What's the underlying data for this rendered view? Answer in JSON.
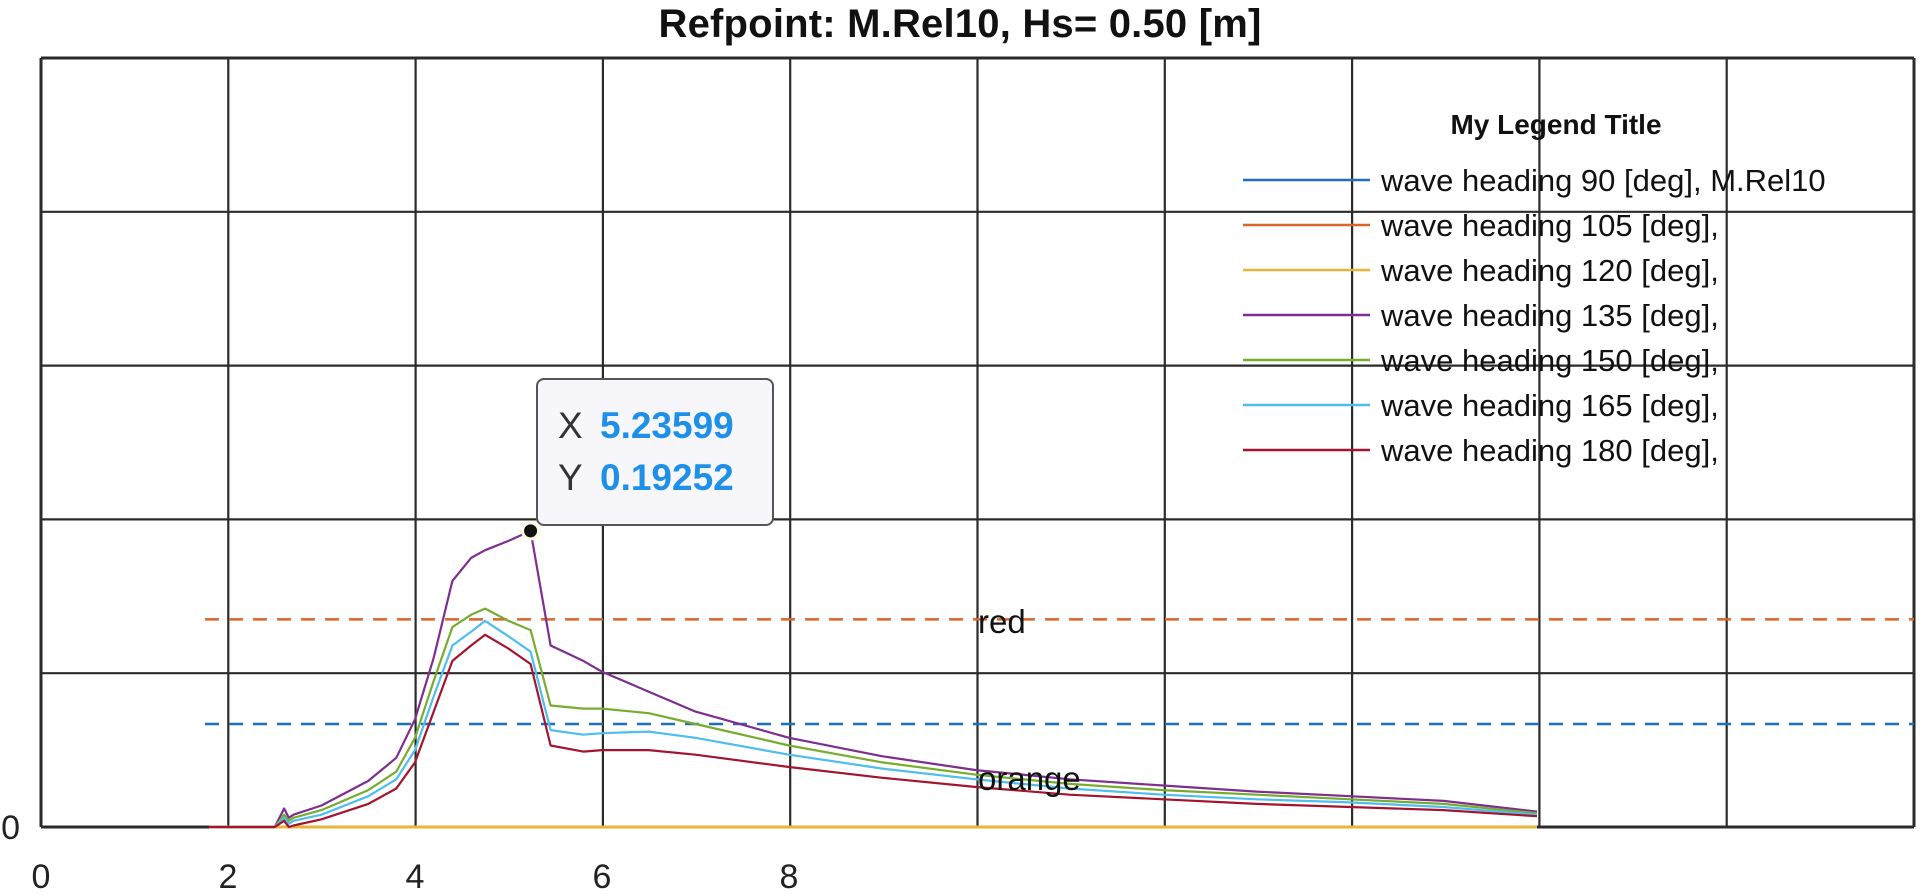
{
  "chart_data": {
    "type": "line",
    "title": "Refpoint: M.Rel10, Hs= 0.50 [m]",
    "xlabel": "",
    "ylabel": "",
    "xlim": [
      0,
      10
    ],
    "ylim": [
      0,
      0.5
    ],
    "grid": true,
    "x_tick_labels": [
      "0",
      "2",
      "4",
      "6",
      "8"
    ],
    "y_tick_labels": [
      "0"
    ],
    "legend": {
      "title": "My Legend Title",
      "position": "upper right"
    },
    "x": [
      1.8,
      2.0,
      2.5,
      2.6,
      2.65,
      2.7,
      3.0,
      3.5,
      3.8,
      4.0,
      4.2,
      4.4,
      4.6,
      4.75,
      5.0,
      5.236,
      5.45,
      5.8,
      6.0,
      6.5,
      7.0,
      8.0,
      9.0,
      10.0,
      11.0,
      12.0,
      13.0,
      14.0,
      15.0,
      16.0
    ],
    "series": [
      {
        "name": "wave heading 90 [deg], M.Rel10",
        "color": "#1f6fb8",
        "values": [
          0,
          0,
          0,
          0,
          0,
          0,
          0,
          0,
          0,
          0,
          0,
          0,
          0,
          0,
          0,
          0,
          0,
          0,
          0,
          0,
          0,
          0,
          0,
          0,
          0,
          0,
          0,
          0,
          0,
          0
        ]
      },
      {
        "name": "wave heading 105 [deg],",
        "color": "#d9652b",
        "values": [
          0,
          0,
          0,
          0,
          0,
          0,
          0,
          0,
          0,
          0,
          0,
          0,
          0,
          0,
          0,
          0,
          0,
          0,
          0,
          0,
          0,
          0,
          0,
          0,
          0,
          0,
          0,
          0,
          0,
          0
        ]
      },
      {
        "name": "wave heading 120 [deg],",
        "color": "#e8b43a",
        "values": [
          0,
          0,
          0,
          0,
          0,
          0,
          0,
          0,
          0,
          0,
          0,
          0,
          0,
          0,
          0,
          0,
          0,
          0,
          0,
          0,
          0,
          0,
          0,
          0,
          0,
          0,
          0,
          0,
          0,
          0
        ]
      },
      {
        "name": "wave heading 135 [deg],",
        "color": "#7e2f8e",
        "values": [
          0,
          0,
          0,
          0.012,
          0.006,
          0.008,
          0.014,
          0.03,
          0.045,
          0.07,
          0.11,
          0.16,
          0.175,
          0.18,
          0.186,
          0.1925,
          0.118,
          0.108,
          0.101,
          0.088,
          0.075,
          0.058,
          0.046,
          0.037,
          0.031,
          0.027,
          0.023,
          0.02,
          0.017,
          0.01
        ]
      },
      {
        "name": "wave heading 150 [deg],",
        "color": "#77ac30",
        "values": [
          0,
          0,
          0,
          0.008,
          0.004,
          0.006,
          0.011,
          0.024,
          0.036,
          0.058,
          0.095,
          0.13,
          0.138,
          0.142,
          0.134,
          0.128,
          0.079,
          0.077,
          0.077,
          0.074,
          0.067,
          0.053,
          0.042,
          0.034,
          0.028,
          0.024,
          0.021,
          0.018,
          0.015,
          0.009
        ]
      },
      {
        "name": "wave heading 165 [deg],",
        "color": "#4dbeee",
        "values": [
          0,
          0,
          0,
          0.006,
          0.002,
          0.004,
          0.008,
          0.02,
          0.031,
          0.05,
          0.085,
          0.118,
          0.127,
          0.134,
          0.124,
          0.114,
          0.063,
          0.06,
          0.061,
          0.062,
          0.058,
          0.047,
          0.038,
          0.031,
          0.025,
          0.021,
          0.018,
          0.016,
          0.013,
          0.008
        ]
      },
      {
        "name": "wave heading 180 [deg],",
        "color": "#a2142f",
        "values": [
          0,
          0,
          0,
          0.004,
          0,
          0.001,
          0.005,
          0.015,
          0.025,
          0.042,
          0.075,
          0.108,
          0.118,
          0.125,
          0.116,
          0.106,
          0.053,
          0.049,
          0.05,
          0.05,
          0.047,
          0.039,
          0.032,
          0.026,
          0.021,
          0.018,
          0.015,
          0.013,
          0.011,
          0.007
        ]
      }
    ],
    "reference_lines": [
      {
        "label": "red",
        "y": 0.135,
        "color": "#d9652b",
        "style": "dashed"
      },
      {
        "label": "orange",
        "y": 0.067,
        "color": "#1f6fb8",
        "style": "dashed"
      }
    ],
    "data_tip": {
      "x_label": "X",
      "x_value": "5.23599",
      "y_label": "Y",
      "y_value": "0.19252"
    }
  }
}
